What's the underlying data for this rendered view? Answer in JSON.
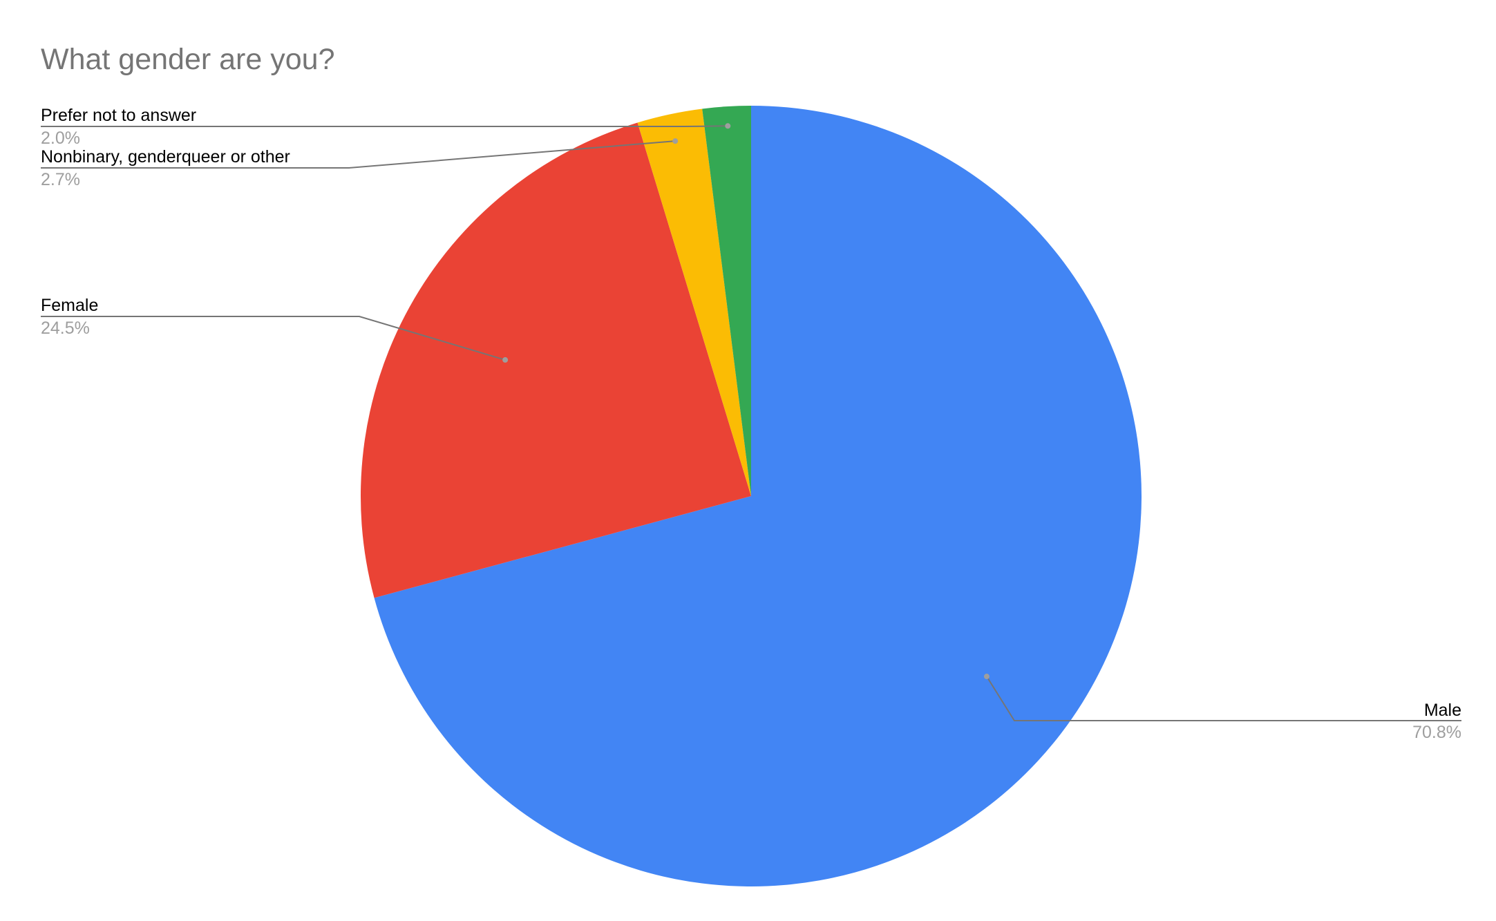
{
  "chart_data": {
    "type": "pie",
    "title": "What gender are you?",
    "start_angle_deg": 0,
    "direction": "clockwise",
    "slices": [
      {
        "label": "Male",
        "value": 70.8,
        "value_label": "70.8%",
        "color": "#4285F4"
      },
      {
        "label": "Female",
        "value": 24.5,
        "value_label": "24.5%",
        "color": "#EA4335"
      },
      {
        "label": "Nonbinary, genderqueer or other",
        "value": 2.7,
        "value_label": "2.7%",
        "color": "#FBBC04"
      },
      {
        "label": "Prefer not to answer",
        "value": 2.0,
        "value_label": "2.0%",
        "color": "#34A853"
      }
    ]
  }
}
